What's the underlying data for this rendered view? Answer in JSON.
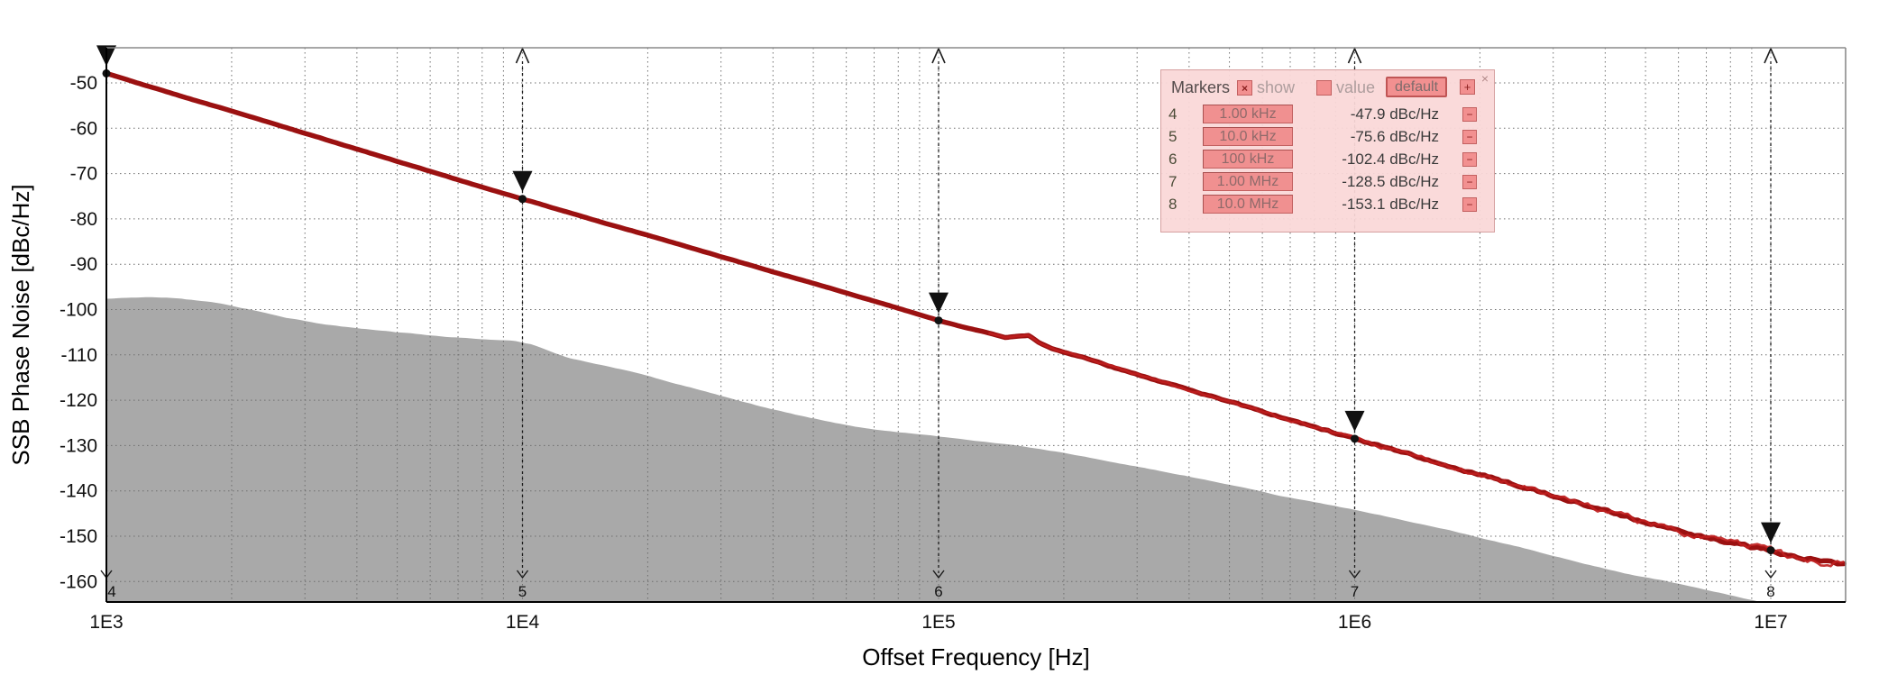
{
  "markers_panel": {
    "title": "Markers",
    "show_label": "show",
    "show_checked": true,
    "value_label": "value",
    "value_checked": false,
    "check_glyph": "×",
    "default_button": "default",
    "add_button": "+",
    "remove_button": "−",
    "close_icon": "×",
    "rows": [
      {
        "num": "4",
        "freq": "1.00 kHz",
        "value": "-47.9 dBc/Hz"
      },
      {
        "num": "5",
        "freq": "10.0 kHz",
        "value": "-75.6 dBc/Hz"
      },
      {
        "num": "6",
        "freq": "100 kHz",
        "value": "-102.4 dBc/Hz"
      },
      {
        "num": "7",
        "freq": "1.00 MHz",
        "value": "-128.5 dBc/Hz"
      },
      {
        "num": "8",
        "freq": "10.0 MHz",
        "value": "-153.1 dBc/Hz"
      }
    ]
  },
  "chart_data": {
    "type": "line",
    "title": "",
    "xlabel": "Offset Frequency [Hz]",
    "ylabel": "SSB Phase Noise [dBc/Hz]",
    "x_scale": "log",
    "xlim": [
      1000,
      15100000
    ],
    "ylim": [
      -163.9,
      -41.6
    ],
    "x_ticks": [
      {
        "label": "1E3",
        "value": 1000
      },
      {
        "label": "1E4",
        "value": 10000
      },
      {
        "label": "1E5",
        "value": 100000
      },
      {
        "label": "1E6",
        "value": 1000000
      },
      {
        "label": "1E7",
        "value": 10000000
      }
    ],
    "y_ticks": [
      {
        "label": "-50",
        "value": -50
      },
      {
        "label": "-60",
        "value": -60
      },
      {
        "label": "-70",
        "value": -70
      },
      {
        "label": "-80",
        "value": -80
      },
      {
        "label": "-90",
        "value": -90
      },
      {
        "label": "-100",
        "value": -100
      },
      {
        "label": "-110",
        "value": -110
      },
      {
        "label": "-120",
        "value": -120
      },
      {
        "label": "-130",
        "value": -130
      },
      {
        "label": "-140",
        "value": -140
      },
      {
        "label": "-150",
        "value": -150
      },
      {
        "label": "-160",
        "value": -160
      }
    ],
    "grid": true,
    "colors": {
      "trace_core": "#9b1111",
      "trace_fuzz": "#c01f1f",
      "noise_floor_fill": "#a9a9a9",
      "grid_line": "#6e6e6e",
      "marker_line": "#1c1c1c",
      "border_light": "#8a8a8a",
      "border_dark": "#000000",
      "panel_accent": "#f29090"
    },
    "series": [
      {
        "name": "phase-noise-trace",
        "points": [
          [
            1000,
            -47.9
          ],
          [
            1300,
            -51.1
          ],
          [
            1600,
            -53.6
          ],
          [
            2000,
            -56.2
          ],
          [
            2500,
            -58.9
          ],
          [
            3150,
            -61.7
          ],
          [
            4000,
            -64.6
          ],
          [
            5000,
            -67.3
          ],
          [
            6300,
            -70.1
          ],
          [
            8000,
            -73.0
          ],
          [
            10000,
            -75.6
          ],
          [
            12500,
            -78.2
          ],
          [
            16000,
            -81.1
          ],
          [
            20000,
            -83.6
          ],
          [
            25000,
            -86.2
          ],
          [
            31500,
            -88.9
          ],
          [
            40000,
            -91.7
          ],
          [
            50000,
            -94.2
          ],
          [
            63000,
            -96.9
          ],
          [
            80000,
            -99.7
          ],
          [
            100000,
            -102.4
          ],
          [
            115000,
            -103.9
          ],
          [
            130000,
            -105.0
          ],
          [
            145000,
            -106.2
          ],
          [
            155000,
            -105.9
          ],
          [
            165000,
            -105.7
          ],
          [
            175000,
            -107.4
          ],
          [
            190000,
            -108.8
          ],
          [
            220000,
            -110.4
          ],
          [
            260000,
            -112.6
          ],
          [
            315000,
            -114.9
          ],
          [
            400000,
            -117.7
          ],
          [
            500000,
            -120.3
          ],
          [
            630000,
            -123.1
          ],
          [
            800000,
            -125.9
          ],
          [
            1000000,
            -128.5
          ],
          [
            1250000,
            -131.0
          ],
          [
            1600000,
            -133.9
          ],
          [
            2000000,
            -136.4
          ],
          [
            2500000,
            -138.9
          ],
          [
            3150000,
            -141.6
          ],
          [
            4000000,
            -144.3
          ],
          [
            5000000,
            -146.8
          ],
          [
            6300000,
            -149.4
          ],
          [
            8000000,
            -151.6
          ],
          [
            10000000,
            -153.1
          ],
          [
            12000000,
            -154.8
          ],
          [
            15100000,
            -156.3
          ]
        ]
      },
      {
        "name": "noise-floor-area",
        "points": [
          [
            1000,
            -97.6
          ],
          [
            1250,
            -97.2
          ],
          [
            1500,
            -97.5
          ],
          [
            1800,
            -98.4
          ],
          [
            2200,
            -100.0
          ],
          [
            2700,
            -101.8
          ],
          [
            3300,
            -103.2
          ],
          [
            4000,
            -104.1
          ],
          [
            5000,
            -105.0
          ],
          [
            6500,
            -106.0
          ],
          [
            8000,
            -106.5
          ],
          [
            9500,
            -106.8
          ],
          [
            10500,
            -107.6
          ],
          [
            11500,
            -109.0
          ],
          [
            13000,
            -110.8
          ],
          [
            15000,
            -112.0
          ],
          [
            17500,
            -113.3
          ],
          [
            20000,
            -114.6
          ],
          [
            24000,
            -116.6
          ],
          [
            30000,
            -119.0
          ],
          [
            38000,
            -121.5
          ],
          [
            48000,
            -123.7
          ],
          [
            60000,
            -125.5
          ],
          [
            75000,
            -126.8
          ],
          [
            100000,
            -128.0
          ],
          [
            130000,
            -129.2
          ],
          [
            160000,
            -130.2
          ],
          [
            200000,
            -131.6
          ],
          [
            260000,
            -133.6
          ],
          [
            330000,
            -135.3
          ],
          [
            420000,
            -137.2
          ],
          [
            530000,
            -139.1
          ],
          [
            670000,
            -141.2
          ],
          [
            850000,
            -143.0
          ],
          [
            1000000,
            -144.2
          ],
          [
            1300000,
            -146.4
          ],
          [
            1700000,
            -148.8
          ],
          [
            2200000,
            -151.2
          ],
          [
            2800000,
            -153.6
          ],
          [
            3600000,
            -156.2
          ],
          [
            4600000,
            -158.5
          ],
          [
            5600000,
            -159.9
          ],
          [
            7000000,
            -161.8
          ],
          [
            8200000,
            -163.2
          ],
          [
            9400000,
            -164.5
          ]
        ]
      }
    ],
    "plot_markers": [
      {
        "id": "4",
        "freq": 1000,
        "value": -47.9
      },
      {
        "id": "5",
        "freq": 10000,
        "value": -75.6
      },
      {
        "id": "6",
        "freq": 100000,
        "value": -102.4
      },
      {
        "id": "7",
        "freq": 1000000,
        "value": -128.5
      },
      {
        "id": "8",
        "freq": 10000000,
        "value": -153.1
      }
    ]
  }
}
